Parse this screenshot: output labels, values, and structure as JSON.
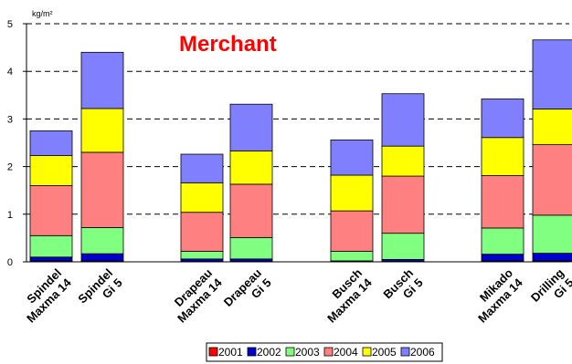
{
  "chart_data": {
    "type": "bar",
    "stacked": true,
    "title": "Merchant",
    "ylabel": "kg/m²",
    "ylim": [
      0,
      5
    ],
    "yticks": [
      "0",
      "1",
      "2",
      "3",
      "4",
      "5"
    ],
    "grid": true,
    "legend_position": "bottom",
    "categories": [
      [
        "Spindel",
        "Maxma 14"
      ],
      [
        "Spindel",
        "Gi 5"
      ],
      [
        "Drapeau",
        "Maxma 14"
      ],
      [
        "Drapeau",
        "Gi 5"
      ],
      [
        "Busch",
        "Maxma 14"
      ],
      [
        "Busch",
        "Gi 5"
      ],
      [
        "Mikado",
        "Maxma 14"
      ],
      [
        "Drilling",
        "Gi 5"
      ]
    ],
    "series": [
      {
        "name": "2001",
        "color": "#ff0000",
        "values": [
          0.02,
          0.02,
          0.01,
          0.01,
          0.01,
          0.01,
          0.02,
          0.02
        ]
      },
      {
        "name": "2002",
        "color": "#0000cc",
        "values": [
          0.08,
          0.15,
          0.05,
          0.05,
          0.01,
          0.04,
          0.14,
          0.16
        ]
      },
      {
        "name": "2003",
        "color": "#80ff80",
        "values": [
          0.45,
          0.55,
          0.16,
          0.45,
          0.2,
          0.55,
          0.55,
          0.8
        ]
      },
      {
        "name": "2004",
        "color": "#ff8080",
        "values": [
          1.05,
          1.58,
          0.82,
          1.12,
          0.85,
          1.2,
          1.1,
          1.48
        ]
      },
      {
        "name": "2005",
        "color": "#ffff00",
        "values": [
          0.63,
          0.92,
          0.62,
          0.7,
          0.75,
          0.63,
          0.8,
          0.75
        ]
      },
      {
        "name": "2006",
        "color": "#8080ff",
        "values": [
          0.52,
          1.18,
          0.6,
          0.98,
          0.74,
          1.1,
          0.81,
          1.45
        ]
      }
    ]
  }
}
